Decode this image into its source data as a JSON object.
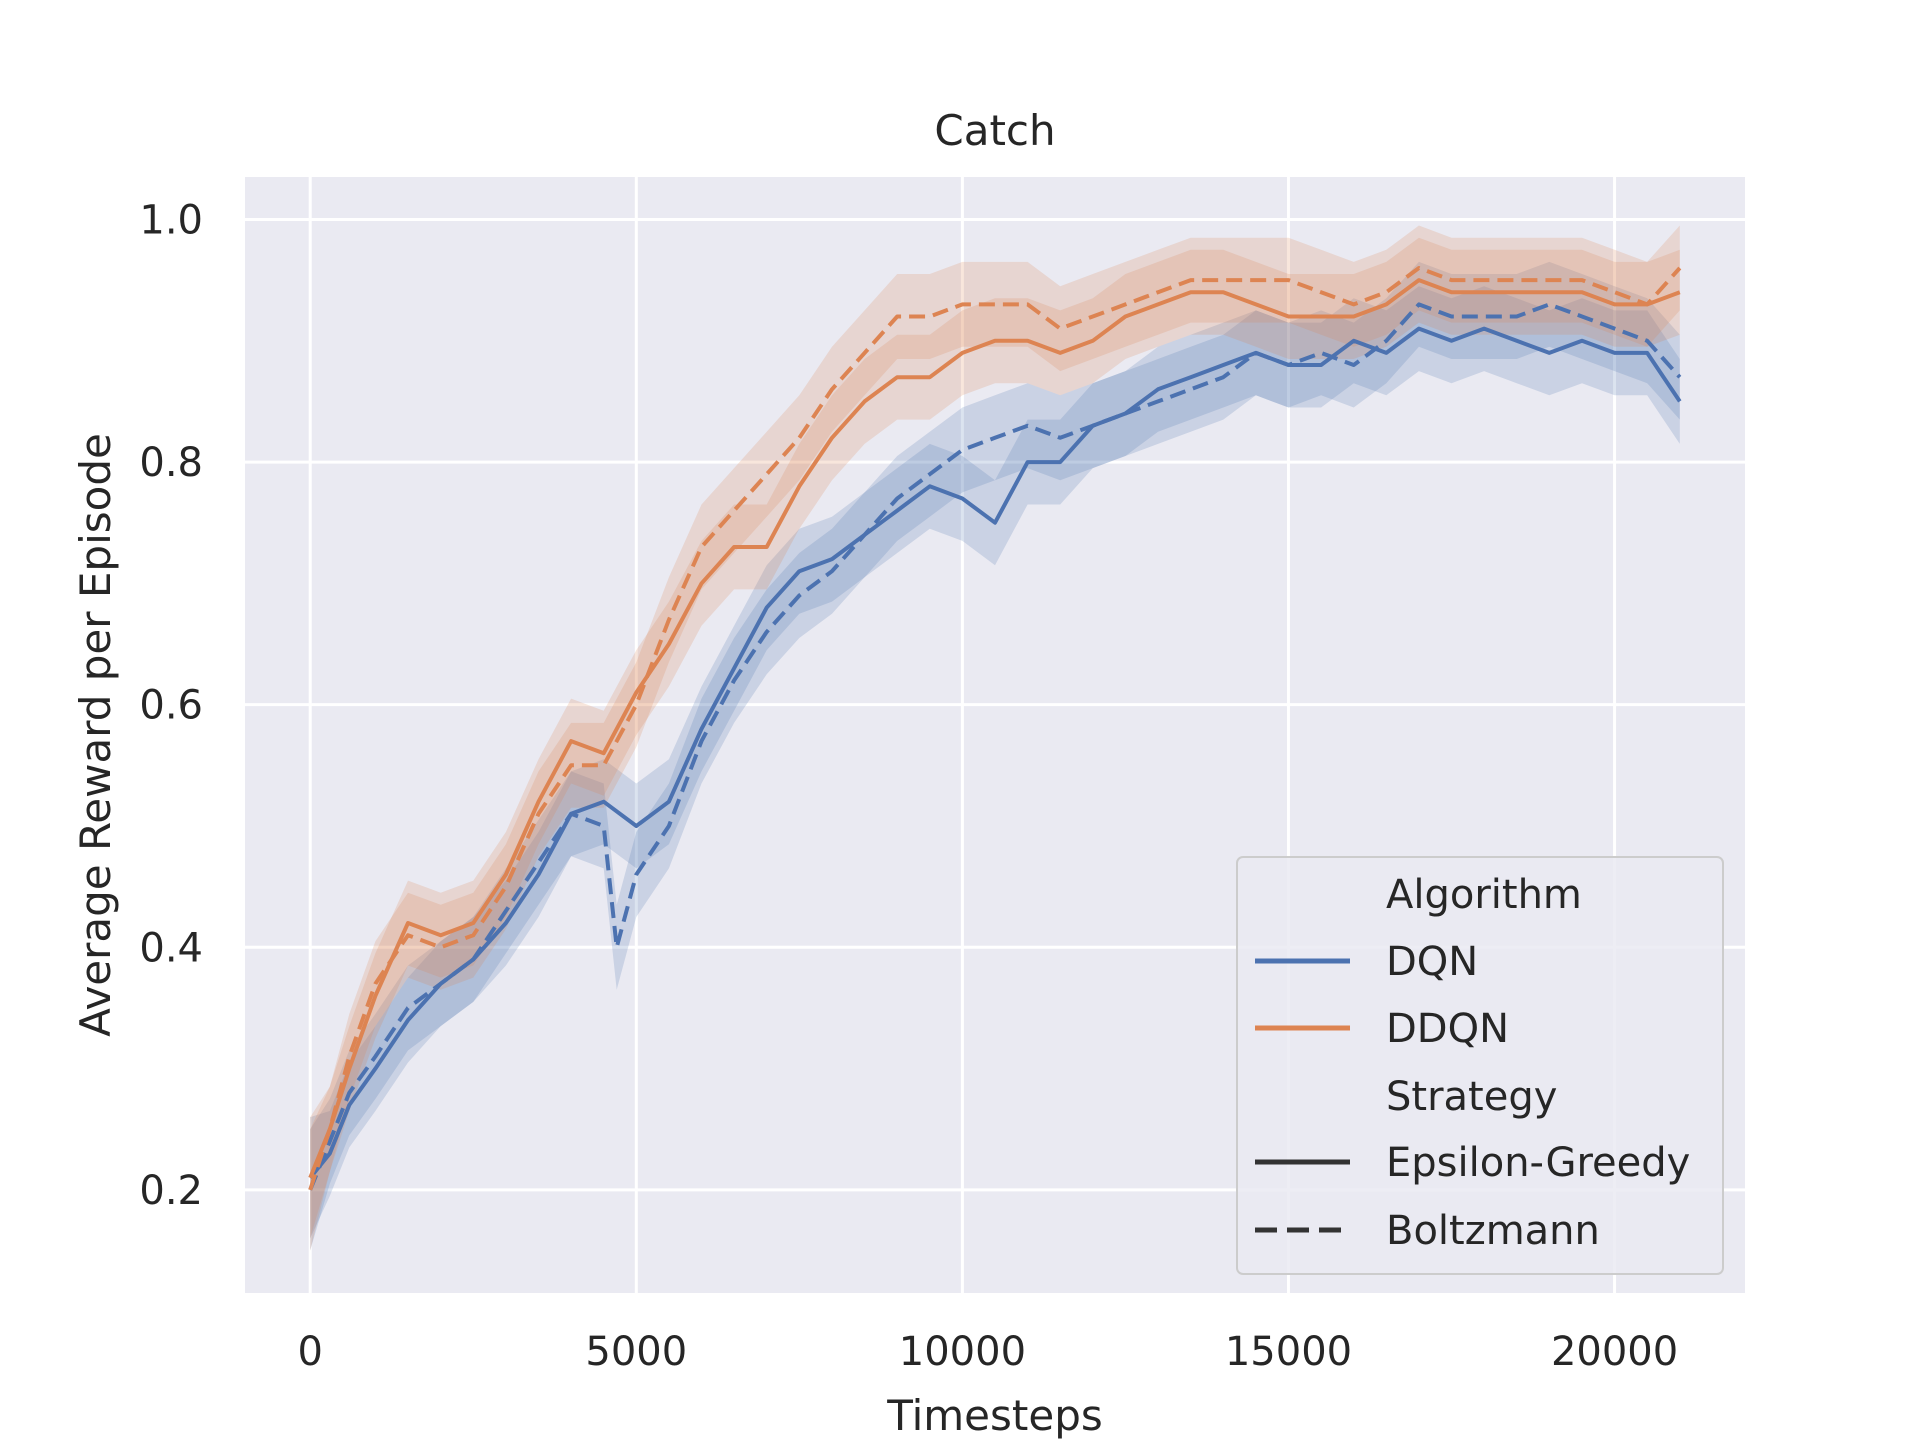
{
  "chart_data": {
    "type": "line",
    "title": "Catch",
    "xlabel": "Timesteps",
    "ylabel": "Average Reward per Episode",
    "xlim": [
      -1000,
      22000
    ],
    "ylim": [
      0.115,
      1.035
    ],
    "xticks": [
      0,
      5000,
      10000,
      15000,
      20000
    ],
    "xtick_labels": [
      "0",
      "5000",
      "10000",
      "15000",
      "20000"
    ],
    "yticks": [
      0.2,
      0.4,
      0.6,
      0.8,
      1.0
    ],
    "ytick_labels": [
      "0.2",
      "0.4",
      "0.6",
      "0.8",
      "1.0"
    ],
    "grid": true,
    "background": "#eaeaf2",
    "legend": {
      "placement": "lower right",
      "groups": [
        {
          "header": "Algorithm",
          "items": [
            {
              "label": "DQN",
              "color": "#4c72b0",
              "dash": "solid"
            },
            {
              "label": "DDQN",
              "color": "#dd8452",
              "dash": "solid"
            }
          ]
        },
        {
          "header": "Strategy",
          "items": [
            {
              "label": "Epsilon-Greedy",
              "color": "#333333",
              "dash": "solid"
            },
            {
              "label": "Boltzmann",
              "color": "#333333",
              "dash": "dashed"
            }
          ]
        }
      ]
    },
    "shaded_band": "confidence interval",
    "series": [
      {
        "algorithm": "DQN",
        "strategy": "Epsilon-Greedy",
        "color": "#4c72b0",
        "dash": "solid",
        "points": [
          [
            0,
            0.21
          ],
          [
            300,
            0.23
          ],
          [
            600,
            0.27
          ],
          [
            1000,
            0.3
          ],
          [
            1500,
            0.34
          ],
          [
            2000,
            0.37
          ],
          [
            2500,
            0.39
          ],
          [
            3000,
            0.42
          ],
          [
            3500,
            0.46
          ],
          [
            4000,
            0.51
          ],
          [
            4500,
            0.52
          ],
          [
            5000,
            0.5
          ],
          [
            5500,
            0.52
          ],
          [
            6000,
            0.58
          ],
          [
            6500,
            0.63
          ],
          [
            7000,
            0.68
          ],
          [
            7500,
            0.71
          ],
          [
            8000,
            0.72
          ],
          [
            8500,
            0.74
          ],
          [
            9000,
            0.76
          ],
          [
            9500,
            0.78
          ],
          [
            10000,
            0.77
          ],
          [
            10500,
            0.75
          ],
          [
            11000,
            0.8
          ],
          [
            11500,
            0.8
          ],
          [
            12000,
            0.83
          ],
          [
            12500,
            0.84
          ],
          [
            13000,
            0.86
          ],
          [
            13500,
            0.87
          ],
          [
            14000,
            0.88
          ],
          [
            14500,
            0.89
          ],
          [
            15000,
            0.88
          ],
          [
            15500,
            0.88
          ],
          [
            16000,
            0.9
          ],
          [
            16500,
            0.89
          ],
          [
            17000,
            0.91
          ],
          [
            17500,
            0.9
          ],
          [
            18000,
            0.91
          ],
          [
            18500,
            0.9
          ],
          [
            19000,
            0.89
          ],
          [
            19500,
            0.9
          ],
          [
            20000,
            0.89
          ],
          [
            20500,
            0.89
          ],
          [
            21000,
            0.85
          ]
        ]
      },
      {
        "algorithm": "DQN",
        "strategy": "Boltzmann",
        "color": "#4c72b0",
        "dash": "dashed",
        "points": [
          [
            0,
            0.2
          ],
          [
            300,
            0.24
          ],
          [
            600,
            0.28
          ],
          [
            1000,
            0.31
          ],
          [
            1500,
            0.35
          ],
          [
            2000,
            0.37
          ],
          [
            2500,
            0.39
          ],
          [
            3000,
            0.43
          ],
          [
            3500,
            0.47
          ],
          [
            4000,
            0.51
          ],
          [
            4500,
            0.5
          ],
          [
            4700,
            0.4
          ],
          [
            5000,
            0.46
          ],
          [
            5500,
            0.5
          ],
          [
            6000,
            0.57
          ],
          [
            6500,
            0.62
          ],
          [
            7000,
            0.66
          ],
          [
            7500,
            0.69
          ],
          [
            8000,
            0.71
          ],
          [
            8500,
            0.74
          ],
          [
            9000,
            0.77
          ],
          [
            9500,
            0.79
          ],
          [
            10000,
            0.81
          ],
          [
            10500,
            0.82
          ],
          [
            11000,
            0.83
          ],
          [
            11500,
            0.82
          ],
          [
            12000,
            0.83
          ],
          [
            12500,
            0.84
          ],
          [
            13000,
            0.85
          ],
          [
            13500,
            0.86
          ],
          [
            14000,
            0.87
          ],
          [
            14500,
            0.89
          ],
          [
            15000,
            0.88
          ],
          [
            15500,
            0.89
          ],
          [
            16000,
            0.88
          ],
          [
            16500,
            0.9
          ],
          [
            17000,
            0.93
          ],
          [
            17500,
            0.92
          ],
          [
            18000,
            0.92
          ],
          [
            18500,
            0.92
          ],
          [
            19000,
            0.93
          ],
          [
            19500,
            0.92
          ],
          [
            20000,
            0.91
          ],
          [
            20500,
            0.9
          ],
          [
            21000,
            0.87
          ]
        ]
      },
      {
        "algorithm": "DDQN",
        "strategy": "Epsilon-Greedy",
        "color": "#dd8452",
        "dash": "solid",
        "points": [
          [
            0,
            0.21
          ],
          [
            300,
            0.25
          ],
          [
            600,
            0.3
          ],
          [
            1000,
            0.36
          ],
          [
            1500,
            0.42
          ],
          [
            2000,
            0.41
          ],
          [
            2500,
            0.42
          ],
          [
            3000,
            0.46
          ],
          [
            3500,
            0.52
          ],
          [
            4000,
            0.57
          ],
          [
            4500,
            0.56
          ],
          [
            5000,
            0.61
          ],
          [
            5500,
            0.65
          ],
          [
            6000,
            0.7
          ],
          [
            6500,
            0.73
          ],
          [
            7000,
            0.73
          ],
          [
            7500,
            0.78
          ],
          [
            8000,
            0.82
          ],
          [
            8500,
            0.85
          ],
          [
            9000,
            0.87
          ],
          [
            9500,
            0.87
          ],
          [
            10000,
            0.89
          ],
          [
            10500,
            0.9
          ],
          [
            11000,
            0.9
          ],
          [
            11500,
            0.89
          ],
          [
            12000,
            0.9
          ],
          [
            12500,
            0.92
          ],
          [
            13000,
            0.93
          ],
          [
            13500,
            0.94
          ],
          [
            14000,
            0.94
          ],
          [
            14500,
            0.93
          ],
          [
            15000,
            0.92
          ],
          [
            15500,
            0.92
          ],
          [
            16000,
            0.92
          ],
          [
            16500,
            0.93
          ],
          [
            17000,
            0.95
          ],
          [
            17500,
            0.94
          ],
          [
            18000,
            0.94
          ],
          [
            18500,
            0.94
          ],
          [
            19000,
            0.94
          ],
          [
            19500,
            0.94
          ],
          [
            20000,
            0.93
          ],
          [
            20500,
            0.93
          ],
          [
            21000,
            0.94
          ]
        ]
      },
      {
        "algorithm": "DDQN",
        "strategy": "Boltzmann",
        "color": "#dd8452",
        "dash": "dashed",
        "points": [
          [
            0,
            0.2
          ],
          [
            300,
            0.25
          ],
          [
            600,
            0.31
          ],
          [
            1000,
            0.37
          ],
          [
            1500,
            0.41
          ],
          [
            2000,
            0.4
          ],
          [
            2500,
            0.41
          ],
          [
            3000,
            0.45
          ],
          [
            3500,
            0.51
          ],
          [
            4000,
            0.55
          ],
          [
            4500,
            0.55
          ],
          [
            5000,
            0.6
          ],
          [
            5500,
            0.67
          ],
          [
            6000,
            0.73
          ],
          [
            6500,
            0.76
          ],
          [
            7000,
            0.79
          ],
          [
            7500,
            0.82
          ],
          [
            8000,
            0.86
          ],
          [
            8500,
            0.89
          ],
          [
            9000,
            0.92
          ],
          [
            9500,
            0.92
          ],
          [
            10000,
            0.93
          ],
          [
            10500,
            0.93
          ],
          [
            11000,
            0.93
          ],
          [
            11500,
            0.91
          ],
          [
            12000,
            0.92
          ],
          [
            12500,
            0.93
          ],
          [
            13000,
            0.94
          ],
          [
            13500,
            0.95
          ],
          [
            14000,
            0.95
          ],
          [
            14500,
            0.95
          ],
          [
            15000,
            0.95
          ],
          [
            15500,
            0.94
          ],
          [
            16000,
            0.93
          ],
          [
            16500,
            0.94
          ],
          [
            17000,
            0.96
          ],
          [
            17500,
            0.95
          ],
          [
            18000,
            0.95
          ],
          [
            18500,
            0.95
          ],
          [
            19000,
            0.95
          ],
          [
            19500,
            0.95
          ],
          [
            20000,
            0.94
          ],
          [
            20500,
            0.93
          ],
          [
            21000,
            0.96
          ]
        ]
      }
    ]
  }
}
